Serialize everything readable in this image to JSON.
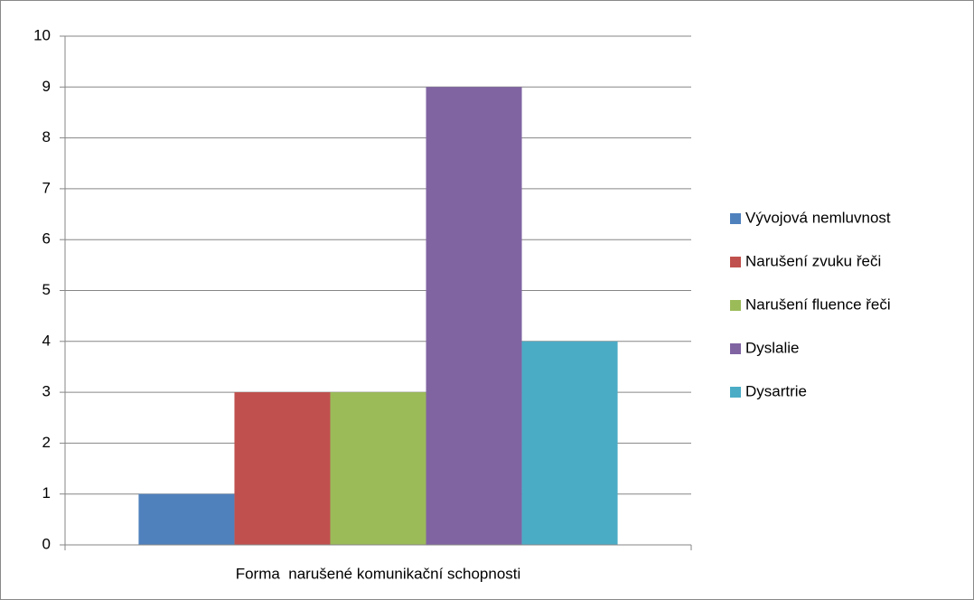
{
  "chart_data": {
    "type": "bar",
    "categories": [
      "Forma  narušené komunikační schopnosti"
    ],
    "series": [
      {
        "name": "Vývojová nemluvnost",
        "color": "#4f81bd",
        "values": [
          1
        ]
      },
      {
        "name": "Narušení zvuku řeči",
        "color": "#c0504d",
        "values": [
          3
        ]
      },
      {
        "name": "Narušení fluence řeči",
        "color": "#9bbb59",
        "values": [
          3
        ]
      },
      {
        "name": "Dyslalie",
        "color": "#8064a2",
        "values": [
          9
        ]
      },
      {
        "name": "Dysartrie",
        "color": "#4bacc6",
        "values": [
          4
        ]
      }
    ],
    "ylim": [
      0,
      10
    ],
    "yticks": [
      0,
      1,
      2,
      3,
      4,
      5,
      6,
      7,
      8,
      9,
      10
    ],
    "grid": true,
    "legend": "right"
  }
}
